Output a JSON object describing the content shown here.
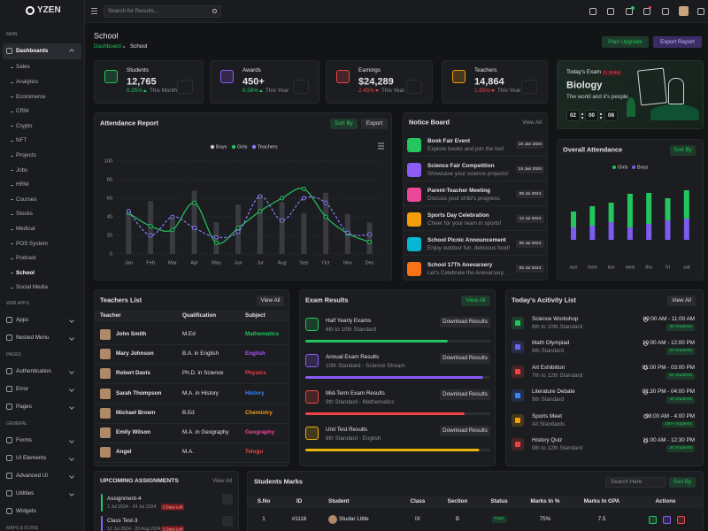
{
  "sidebar": {
    "logo": "YZEN",
    "sections": [
      {
        "title": "MAIN",
        "items": [
          {
            "label": "Dashboards",
            "active": true,
            "chevron": true,
            "children": [
              {
                "label": "Sales"
              },
              {
                "label": "Analytics"
              },
              {
                "label": "Ecommerce"
              },
              {
                "label": "CRM"
              },
              {
                "label": "Crypto"
              },
              {
                "label": "NFT"
              },
              {
                "label": "Projects"
              },
              {
                "label": "Jobs"
              },
              {
                "label": "HRM"
              },
              {
                "label": "Courses"
              },
              {
                "label": "Stocks"
              },
              {
                "label": "Medical"
              },
              {
                "label": "POS System"
              },
              {
                "label": "Podcast"
              },
              {
                "label": "School",
                "active": true
              },
              {
                "label": "Social Media"
              }
            ]
          }
        ]
      },
      {
        "title": "WEB APPS",
        "items": [
          {
            "label": "Apps",
            "chevron": true
          },
          {
            "label": "Nested Menu",
            "chevron": true
          }
        ]
      },
      {
        "title": "PAGES",
        "items": [
          {
            "label": "Authentication",
            "chevron": true
          },
          {
            "label": "Error",
            "chevron": true
          },
          {
            "label": "Pages",
            "chevron": true
          }
        ]
      },
      {
        "title": "GENERAL",
        "items": [
          {
            "label": "Forms",
            "chevron": true
          },
          {
            "label": "UI Elements",
            "chevron": true
          },
          {
            "label": "Advanced UI",
            "chevron": true
          },
          {
            "label": "Utilities",
            "chevron": true
          },
          {
            "label": "Widgets"
          }
        ]
      },
      {
        "title": "MAPS & ICONS",
        "items": []
      }
    ]
  },
  "header": {
    "search_placeholder": "Search for Results..."
  },
  "page": {
    "title": "School",
    "breadcrumb": [
      "Dashboard",
      "School"
    ],
    "buttons": [
      "Plan Upgrade",
      "Export Report"
    ]
  },
  "stats": [
    {
      "label": "Students",
      "value": "12,765",
      "change": "0.25%",
      "period": "This Month",
      "trend": "up",
      "color": "#22c55e"
    },
    {
      "label": "Awards",
      "value": "450+",
      "change": "6.56%",
      "period": "This Year",
      "trend": "up",
      "color": "#8b5cf6"
    },
    {
      "label": "Earnings",
      "value": "$24,289",
      "change": "2.45%",
      "period": "This Year",
      "trend": "down",
      "color": "#ef4444"
    },
    {
      "label": "Teachers",
      "value": "14,864",
      "change": "1.65%",
      "period": "This Year",
      "trend": "down",
      "color": "#f59e0b"
    }
  ],
  "exam": {
    "label": "Today's Exam",
    "time": "11:30AM",
    "subject": "Biology",
    "subtitle": "The world and it's people",
    "timer": [
      "02",
      "00",
      "08"
    ]
  },
  "chart_data": [
    {
      "type": "bar-line",
      "title": "Attendance Report",
      "buttons": [
        "Sort By",
        "Export"
      ],
      "categories": [
        "Jan",
        "Feb",
        "Mar",
        "Apr",
        "May",
        "Jun",
        "Jul",
        "Aug",
        "Sep",
        "Oct",
        "Nov",
        "Dec"
      ],
      "ylim": [
        0,
        100
      ],
      "yticks": [
        0,
        20,
        40,
        60,
        80,
        100
      ],
      "grid": true,
      "series": [
        {
          "name": "Boys",
          "type": "bar",
          "color": "#3a3b40",
          "legend_color": "#c9cad0",
          "values": [
            44,
            57,
            38,
            68,
            34,
            53,
            64,
            56,
            44,
            66,
            43,
            34
          ]
        },
        {
          "name": "Girls",
          "type": "line",
          "color": "#22c55e",
          "values": [
            44,
            30,
            26,
            55,
            12,
            28,
            46,
            60,
            70,
            40,
            22,
            13
          ]
        },
        {
          "name": "Teachers",
          "type": "line",
          "dashed": true,
          "color": "#8b7cf6",
          "values": [
            46,
            20,
            40,
            28,
            18,
            24,
            62,
            36,
            60,
            55,
            23,
            21
          ]
        }
      ]
    },
    {
      "type": "stacked-bar",
      "title": "Overall Attendance",
      "buttons": [
        "Sort By"
      ],
      "categories": [
        "sun",
        "mon",
        "tue",
        "wed",
        "thu",
        "fri",
        "sat"
      ],
      "series": [
        {
          "name": "Girls",
          "color": "#22c55e",
          "values": [
            18,
            22,
            22,
            38,
            35,
            25,
            32
          ]
        },
        {
          "name": "Boys",
          "color": "#7c5cf0",
          "values": [
            14,
            16,
            20,
            14,
            18,
            22,
            24
          ]
        }
      ]
    }
  ],
  "notice_board": {
    "title": "Notice Board",
    "view_all": "View All",
    "items": [
      {
        "title": "Book Fair Event",
        "text": "Explore books and join the fun!",
        "date": "10 Jan 2024",
        "color": "#22c55e"
      },
      {
        "title": "Science Fair Competition",
        "text": "Showcase your science projects!",
        "date": "24 Jan 2024",
        "color": "#8b5cf6"
      },
      {
        "title": "Parent-Teacher Meeting",
        "text": "Discuss your child's progress.",
        "date": "09 Jul 2024",
        "color": "#ec4899"
      },
      {
        "title": "Sports Day Celebration",
        "text": "Cheer for your team in sports!",
        "date": "12 Jul 2024",
        "color": "#f59e0b"
      },
      {
        "title": "School Picnic Announcement",
        "text": "Enjoy outdoor fun, delicious food!",
        "date": "05 Jul 2024",
        "color": "#06b6d4"
      },
      {
        "title": "School 17Th Anevarsery",
        "text": "Let's Celebrate the Anevarsary.",
        "date": "05 Jul 2024",
        "color": "#f97316"
      }
    ]
  },
  "teachers": {
    "title": "Teachers List",
    "view_all": "View All",
    "headers": [
      "Teacher",
      "Qualification",
      "Subject"
    ],
    "rows": [
      {
        "name": "John Smith",
        "qualification": "M.Ed",
        "subject": "Mathematics",
        "color": "#22c55e"
      },
      {
        "name": "Mary Johnson",
        "qualification": "B.A. in English",
        "subject": "English",
        "color": "#a855f7"
      },
      {
        "name": "Robert Davis",
        "qualification": "Ph.D. in Science",
        "subject": "Physics",
        "color": "#ef4444"
      },
      {
        "name": "Sarah Thompson",
        "qualification": "M.A. in History",
        "subject": "History",
        "color": "#3b82f6"
      },
      {
        "name": "Michael Brown",
        "qualification": "B.Ed",
        "subject": "Chemistry",
        "color": "#f59e0b"
      },
      {
        "name": "Emily Wilson",
        "qualification": "M.A. in Geography",
        "subject": "Geography",
        "color": "#ec4899"
      },
      {
        "name": "Angel",
        "qualification": "M.A.",
        "subject": "Telugu",
        "color": "#ef4444"
      }
    ]
  },
  "exam_results": {
    "title": "Exam Results",
    "view_all": "View All",
    "download": "Download Results",
    "items": [
      {
        "title": "Half Yearly Exams",
        "subtitle": "6th to 10th Standard",
        "progress": 77,
        "color": "#22c55e"
      },
      {
        "title": "Annual Exam Results",
        "subtitle": "10th Standard - Science Stream",
        "progress": 96,
        "color": "#8b5cf6"
      },
      {
        "title": "Mid-Term Exam Results",
        "subtitle": "9th Standard - Mathematics",
        "progress": 86,
        "color": "#ef4444"
      },
      {
        "title": "Unit Test Results",
        "subtitle": "8th Standard - English",
        "progress": 94,
        "color": "#eab308"
      }
    ]
  },
  "activities": {
    "title": "Today's Acitivity List",
    "view_all": "View All",
    "items": [
      {
        "title": "Science Workshop",
        "subtitle": "6th to 10th Standard",
        "time": "09:00 AM - 11:00 AM",
        "students": "30 Students",
        "color": "#22c55e"
      },
      {
        "title": "Math Olympiad",
        "subtitle": "8th Standard",
        "time": "10:00 AM - 12:00 PM",
        "students": "20 Students",
        "color": "#6366f1"
      },
      {
        "title": "Art Exhibition",
        "subtitle": "7th to 12th Standard",
        "time": "01:00 PM - 03:00 PM",
        "students": "50 Students",
        "color": "#ef4444"
      },
      {
        "title": "Literature Debate",
        "subtitle": "9th Standard",
        "time": "02:30 PM - 04:00 PM",
        "students": "40 Students",
        "color": "#3b82f6"
      },
      {
        "title": "Sports Meet",
        "subtitle": "All Standards",
        "time": "08:00 AM - 4:00 PM",
        "students": "100+ Students",
        "color": "#f59e0b"
      },
      {
        "title": "History Quiz",
        "subtitle": "9th to 12th Standard",
        "time": "11:00 AM - 12:30 PM",
        "students": "40 Students",
        "color": "#ef4444"
      }
    ]
  },
  "assignments": {
    "title": "UPCOMING ASSIGNMENTS",
    "view_all": "View All",
    "items": [
      {
        "title": "Assignment-4",
        "dates": "1 Jul 2024 - 24 Jul 2024",
        "badge": "3 Days Left",
        "color": "#22c55e"
      },
      {
        "title": "Class Test-3",
        "dates": "12 Jul 2024 - 20 Aug 2024",
        "badge": "2 Days Left",
        "color": "#8b5cf6"
      }
    ]
  },
  "marks": {
    "title": "Students Marks",
    "search_placeholder": "Search Here",
    "sort": "Sort By",
    "headers": [
      "S.No",
      "ID",
      "Student",
      "Class",
      "Section",
      "Status",
      "Marks In %",
      "Marks In GPA",
      "Actions"
    ],
    "rows": [
      [
        "1",
        "#1116",
        "Studar Little",
        "IX",
        "B",
        "Pass",
        "75%",
        "7.5"
      ]
    ]
  }
}
